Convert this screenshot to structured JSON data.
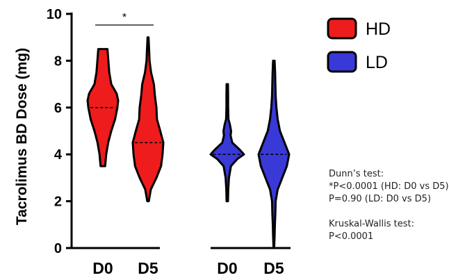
{
  "chart_data": {
    "type": "violin",
    "ylabel": "Tacrolimus BD Dose (mg)",
    "ylim": [
      0,
      10
    ],
    "yticks": [
      0,
      2,
      4,
      6,
      8,
      10
    ],
    "categories": [
      "D0",
      "D5",
      "D0",
      "D5"
    ],
    "series": [
      {
        "name": "HD",
        "color": "#ee1c1c",
        "groups": [
          {
            "label": "D0",
            "median": 6.0,
            "range": [
              3.5,
              8.5
            ],
            "density": [
              [
                3.5,
                0.15
              ],
              [
                4.0,
                0.22
              ],
              [
                4.5,
                0.35
              ],
              [
                5.0,
                0.55
              ],
              [
                5.5,
                0.8
              ],
              [
                6.0,
                0.95
              ],
              [
                6.3,
                1.0
              ],
              [
                6.6,
                0.9
              ],
              [
                7.0,
                0.55
              ],
              [
                7.5,
                0.42
              ],
              [
                8.0,
                0.36
              ],
              [
                8.5,
                0.3
              ]
            ]
          },
          {
            "label": "D5",
            "median": 4.5,
            "range": [
              2.0,
              9.0
            ],
            "density": [
              [
                2.0,
                0.05
              ],
              [
                2.5,
                0.18
              ],
              [
                3.0,
                0.55
              ],
              [
                3.5,
                0.85
              ],
              [
                4.0,
                0.95
              ],
              [
                4.5,
                1.0
              ],
              [
                5.0,
                0.8
              ],
              [
                5.5,
                0.58
              ],
              [
                6.0,
                0.55
              ],
              [
                6.5,
                0.45
              ],
              [
                7.0,
                0.38
              ],
              [
                7.5,
                0.2
              ],
              [
                8.0,
                0.1
              ],
              [
                8.5,
                0.07
              ],
              [
                9.0,
                0.03
              ]
            ]
          }
        ]
      },
      {
        "name": "LD",
        "color": "#3939d8",
        "groups": [
          {
            "label": "D0",
            "median": 4.0,
            "range": [
              2.0,
              7.0
            ],
            "density": [
              [
                2.0,
                0.04
              ],
              [
                2.5,
                0.06
              ],
              [
                3.0,
                0.1
              ],
              [
                3.5,
                0.22
              ],
              [
                3.8,
                0.6
              ],
              [
                4.0,
                1.0
              ],
              [
                4.2,
                0.75
              ],
              [
                4.5,
                0.3
              ],
              [
                4.8,
                0.2
              ],
              [
                5.0,
                0.23
              ],
              [
                5.3,
                0.15
              ],
              [
                5.5,
                0.07
              ],
              [
                6.0,
                0.05
              ],
              [
                6.5,
                0.05
              ],
              [
                7.0,
                0.04
              ]
            ]
          },
          {
            "label": "D5",
            "median": 4.0,
            "range": [
              0.0,
              8.0
            ],
            "density": [
              [
                0.0,
                0.02
              ],
              [
                0.5,
                0.05
              ],
              [
                1.0,
                0.07
              ],
              [
                1.5,
                0.1
              ],
              [
                2.0,
                0.12
              ],
              [
                2.5,
                0.25
              ],
              [
                3.0,
                0.55
              ],
              [
                3.5,
                0.85
              ],
              [
                4.0,
                1.0
              ],
              [
                4.5,
                0.7
              ],
              [
                5.0,
                0.4
              ],
              [
                5.5,
                0.25
              ],
              [
                6.0,
                0.17
              ],
              [
                6.5,
                0.12
              ],
              [
                7.0,
                0.1
              ],
              [
                7.5,
                0.08
              ],
              [
                8.0,
                0.05
              ]
            ]
          }
        ]
      }
    ],
    "significance": {
      "marker": "*",
      "between": [
        "HD D0",
        "HD D5"
      ]
    },
    "legend": {
      "position": "top-right",
      "entries": [
        "HD",
        "LD"
      ]
    },
    "grid": false
  },
  "stats_text": {
    "dunn_title": "Dunn’s test:",
    "dunn_line1": "*P<0.0001 (HD: D0 vs D5)",
    "dunn_line2": "P=0.90 (LD: D0 vs D5)",
    "kw_title": "Kruskal-Wallis test:",
    "kw_line1": "P<0.0001"
  }
}
